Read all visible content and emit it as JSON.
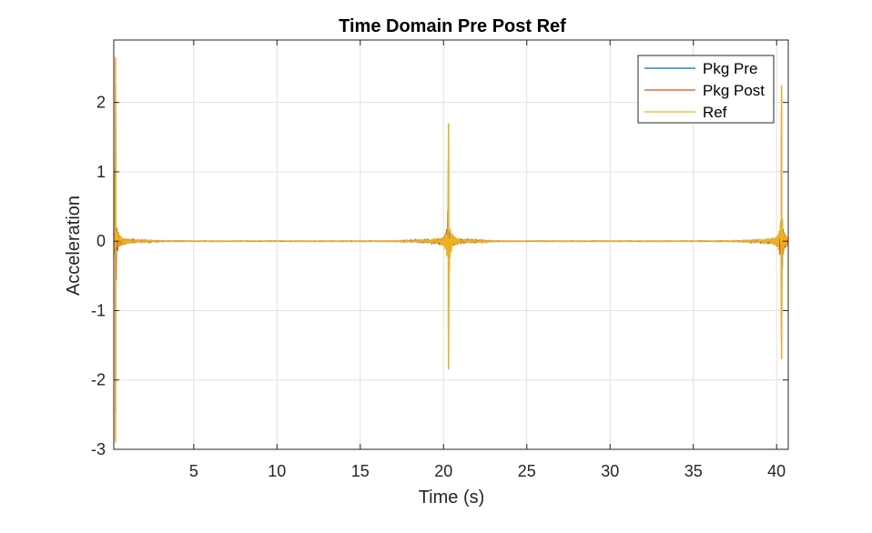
{
  "chart_data": {
    "type": "line",
    "title": "Time Domain Pre Post Ref",
    "xlabel": "Time (s)",
    "ylabel": "Acceleration",
    "xlim": [
      0.2,
      40.7
    ],
    "ylim": [
      -3,
      2.9
    ],
    "xticks": [
      5,
      10,
      15,
      20,
      25,
      30,
      35,
      40
    ],
    "yticks": [
      -3,
      -2,
      -1,
      0,
      1,
      2
    ],
    "xtick_labels": [
      "5",
      "10",
      "15",
      "20",
      "25",
      "30",
      "35",
      "40"
    ],
    "ytick_labels": [
      "-3",
      "-2",
      "-1",
      "0",
      "1",
      "2"
    ],
    "grid": true,
    "legend_position": "top-right",
    "series": [
      {
        "name": "Pkg Pre",
        "color": "#0072BD"
      },
      {
        "name": "Pkg Post",
        "color": "#D95319"
      },
      {
        "name": "Ref",
        "color": "#EDB120"
      }
    ],
    "impulses": [
      {
        "time": 0.3,
        "peak_max": 2.65,
        "peak_min": -2.9
      },
      {
        "time": 20.3,
        "peak_max": 1.7,
        "peak_min": -1.85
      },
      {
        "time": 40.3,
        "peak_max": 2.25,
        "peak_min": -1.7
      }
    ]
  }
}
